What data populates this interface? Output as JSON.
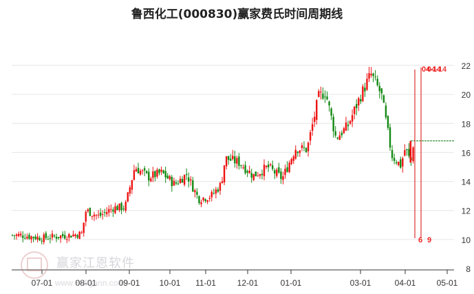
{
  "title": "鲁西化工(000830)赢家费氏时间周期线",
  "watermark": {
    "brand": "赢家江恩软件",
    "url": "www.360gann.com"
  },
  "colors": {
    "up": "#ee1111",
    "down": "#118811",
    "cycle_line": "#e03030",
    "grid": "#e6e6e6",
    "axis": "#333333",
    "dashed_line": "#117711"
  },
  "chart_data": {
    "type": "candlestick",
    "title": "鲁西化工(000830)赢家费氏时间周期线",
    "xlabel": "",
    "ylabel": "",
    "ylim": [
      8,
      23
    ],
    "y_ticks": [
      8,
      10,
      12,
      14,
      16,
      18,
      20,
      22
    ],
    "x_tick_labels": [
      "07-01",
      "08-01",
      "09-01",
      "10-01",
      "11-01",
      "12-01",
      "01-01",
      "03-01",
      "04-01",
      "05-01"
    ],
    "grid": "horizontal",
    "approx_price_path": [
      {
        "date": "06-15",
        "close": 10.3
      },
      {
        "date": "07-01",
        "close": 10.1
      },
      {
        "date": "07-20",
        "close": 10.3
      },
      {
        "date": "07-28",
        "close": 10.4
      },
      {
        "date": "08-01",
        "close": 12.0
      },
      {
        "date": "08-10",
        "close": 11.6
      },
      {
        "date": "08-20",
        "close": 12.2
      },
      {
        "date": "08-28",
        "close": 12.2
      },
      {
        "date": "09-05",
        "close": 15.0
      },
      {
        "date": "09-15",
        "close": 14.3
      },
      {
        "date": "09-25",
        "close": 14.6
      },
      {
        "date": "10-05",
        "close": 13.8
      },
      {
        "date": "10-15",
        "close": 14.5
      },
      {
        "date": "10-25",
        "close": 12.8
      },
      {
        "date": "11-05",
        "close": 13.0
      },
      {
        "date": "11-12",
        "close": 13.8
      },
      {
        "date": "11-15",
        "close": 15.6
      },
      {
        "date": "11-25",
        "close": 15.3
      },
      {
        "date": "12-05",
        "close": 14.4
      },
      {
        "date": "12-15",
        "close": 15.0
      },
      {
        "date": "12-25",
        "close": 14.2
      },
      {
        "date": "01-05",
        "close": 16.3
      },
      {
        "date": "01-15",
        "close": 16.2
      },
      {
        "date": "01-25",
        "close": 19.8
      },
      {
        "date": "02-01",
        "close": 20.2
      },
      {
        "date": "02-10",
        "close": 17.0
      },
      {
        "date": "02-20",
        "close": 17.8
      },
      {
        "date": "03-01",
        "close": 19.9
      },
      {
        "date": "03-08",
        "close": 21.4
      },
      {
        "date": "03-15",
        "close": 20.0
      },
      {
        "date": "03-22",
        "close": 15.8
      },
      {
        "date": "03-28",
        "close": 15.1
      },
      {
        "date": "04-01",
        "close": 16.3
      },
      {
        "date": "04-05",
        "close": 15.3
      },
      {
        "date": "04-07",
        "close": 16.8
      }
    ],
    "last_price_line": 16.8,
    "cycle_lines": [
      {
        "label": "6",
        "top_label": "0",
        "x_date": "04-08"
      },
      {
        "label": "9",
        "top_label": "04-14",
        "x_date": "04-14"
      }
    ],
    "top_label_text": "04-14"
  }
}
